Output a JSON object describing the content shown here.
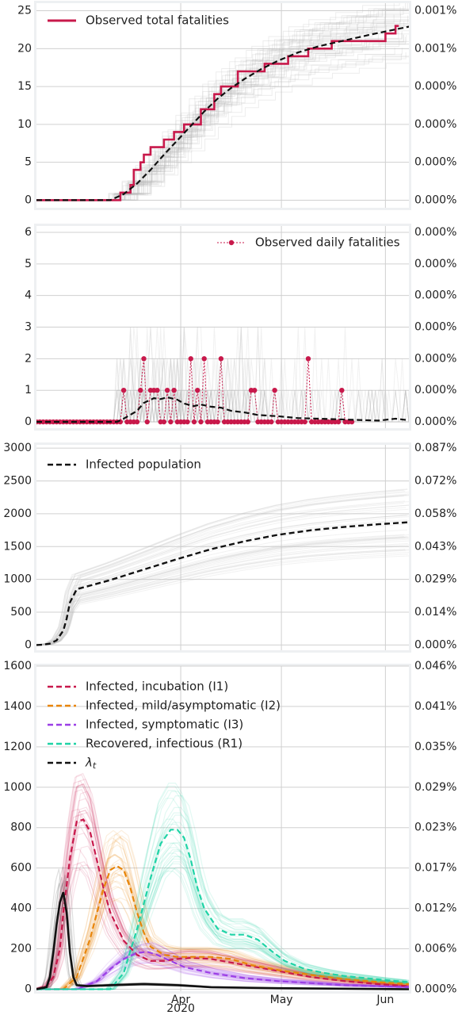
{
  "colors": {
    "observed": "#c8194b",
    "median": "#111111",
    "i1": "#c8194b",
    "i2": "#e8850a",
    "i3": "#9b3fe6",
    "r1": "#1fd3a6",
    "lambda": "#111111",
    "samples": "#bdbdbd"
  },
  "x_axis": {
    "ticks": [
      {
        "label": "Apr",
        "day": 31
      },
      {
        "label": "May",
        "day": 61
      },
      {
        "label": "Jun",
        "day": 92
      }
    ],
    "year_label": "2020",
    "range": [
      -12,
      99
    ]
  },
  "chart_data": [
    {
      "type": "line",
      "id": "total",
      "ylim": [
        -1,
        26
      ],
      "yticks": [
        "0",
        "5",
        "10",
        "15",
        "20",
        "25"
      ],
      "ytick_values": [
        0,
        5,
        10,
        15,
        20,
        25
      ],
      "right_ticks": [
        "0.000%",
        "0.000%",
        "0.000%",
        "0.000%",
        "0.001%",
        "0.001%"
      ],
      "legend": [
        {
          "label": "Observed total fatalities",
          "style": "observed-solid"
        }
      ],
      "observed": {
        "x": [
          -12,
          9,
          13,
          14,
          15,
          16,
          17,
          18,
          19,
          20,
          21,
          22,
          23,
          24,
          25,
          26,
          27,
          28,
          29,
          30,
          31,
          32,
          33,
          34,
          35,
          36,
          37,
          39,
          40,
          41,
          42,
          43,
          44,
          45,
          47,
          48,
          52,
          56,
          63,
          69,
          76,
          79,
          86,
          89,
          92,
          95,
          96
        ],
        "y": [
          0,
          0,
          1,
          1,
          1,
          2,
          4,
          4,
          5,
          6,
          6,
          7,
          7,
          7,
          7,
          8,
          8,
          8,
          9,
          9,
          9,
          10,
          10,
          10,
          10,
          10,
          12,
          12,
          12,
          14,
          14,
          15,
          15,
          15,
          15,
          17,
          17,
          18,
          19,
          20,
          21,
          21,
          21,
          21,
          22,
          23,
          23
        ]
      },
      "median": {
        "x": [
          -12,
          10,
          14,
          18,
          22,
          26,
          30,
          34,
          38,
          42,
          46,
          50,
          55,
          60,
          66,
          72,
          80,
          88,
          99
        ],
        "y": [
          0,
          0,
          0.8,
          2.2,
          4.0,
          6.0,
          7.9,
          9.8,
          11.7,
          13.4,
          14.8,
          16.0,
          17.3,
          18.4,
          19.5,
          20.3,
          21.1,
          21.9,
          22.9
        ]
      }
    },
    {
      "type": "line",
      "id": "daily",
      "ylim": [
        -0.2,
        6.2
      ],
      "yticks": [
        "0",
        "1",
        "2",
        "3",
        "4",
        "5",
        "6"
      ],
      "ytick_values": [
        0,
        1,
        2,
        3,
        4,
        5,
        6
      ],
      "right_ticks": [
        "0.000%",
        "0.000%",
        "0.000%",
        "0.000%",
        "0.000%",
        "0.000%",
        "0.000%"
      ],
      "legend": [
        {
          "label": "Observed daily fatalities",
          "style": "observed-dotted-marker"
        }
      ],
      "observed": {
        "x_start": -12,
        "values": [
          0,
          0,
          0,
          0,
          0,
          0,
          0,
          0,
          0,
          0,
          0,
          0,
          0,
          0,
          0,
          0,
          0,
          0,
          0,
          0,
          0,
          0,
          0,
          0,
          0,
          0,
          1,
          0,
          0,
          0,
          0,
          1,
          2,
          0,
          1,
          1,
          1,
          0,
          0,
          1,
          0,
          1,
          0,
          0,
          0,
          0,
          2,
          0,
          1,
          0,
          2,
          0,
          0,
          0,
          0,
          2,
          0,
          0,
          0,
          0,
          0,
          0,
          0,
          0,
          1,
          1,
          0,
          0,
          0,
          0,
          0,
          1,
          0,
          0,
          0,
          0,
          0,
          0,
          0,
          0,
          0,
          2,
          0,
          0,
          0,
          0,
          0,
          0,
          0,
          0,
          0,
          1,
          0,
          0,
          0
        ]
      },
      "median": {
        "x": [
          -12,
          12,
          14,
          18,
          20,
          23,
          25,
          27,
          30,
          32,
          35,
          37,
          40,
          43,
          46,
          50,
          54,
          60,
          66,
          72,
          78,
          84,
          90,
          95,
          99
        ],
        "y": [
          0,
          0,
          0.1,
          0.35,
          0.6,
          0.75,
          0.72,
          0.78,
          0.7,
          0.58,
          0.5,
          0.55,
          0.48,
          0.45,
          0.35,
          0.3,
          0.22,
          0.18,
          0.12,
          0.1,
          0.08,
          0.06,
          0.04,
          0.1,
          0.05
        ]
      }
    },
    {
      "type": "line",
      "id": "infected",
      "ylim": [
        -80,
        3050
      ],
      "yticks": [
        "0",
        "500",
        "1000",
        "1500",
        "2000",
        "2500",
        "3000"
      ],
      "ytick_values": [
        0,
        500,
        1000,
        1500,
        2000,
        2500,
        3000
      ],
      "right_ticks": [
        "0.000%",
        "0.014%",
        "0.029%",
        "0.043%",
        "0.058%",
        "0.072%",
        "0.087%"
      ],
      "legend": [
        {
          "label": "Infected population",
          "style": "median-dashed"
        }
      ],
      "median": {
        "x": [
          -12,
          -10,
          -8,
          -6,
          -4,
          -3,
          -2,
          0,
          5,
          10,
          15,
          20,
          25,
          30,
          40,
          50,
          60,
          70,
          80,
          90,
          99
        ],
        "y": [
          0,
          5,
          20,
          70,
          220,
          400,
          650,
          850,
          920,
          990,
          1070,
          1150,
          1230,
          1310,
          1460,
          1580,
          1680,
          1750,
          1800,
          1840,
          1870
        ]
      }
    },
    {
      "type": "line",
      "id": "compartments",
      "ylim": [
        -10,
        1600
      ],
      "yticks": [
        "0",
        "200",
        "400",
        "600",
        "800",
        "1000",
        "1200",
        "1400",
        "1600"
      ],
      "ytick_values": [
        0,
        200,
        400,
        600,
        800,
        1000,
        1200,
        1400,
        1600
      ],
      "right_ticks": [
        "0.000%",
        "0.006%",
        "0.012%",
        "0.017%",
        "0.023%",
        "0.029%",
        "0.035%",
        "0.041%",
        "0.046%"
      ],
      "legend": [
        {
          "label": "Infected, incubation (I1)",
          "style": "i1"
        },
        {
          "label": "Infected, mild/asymptomatic (I2)",
          "style": "i2"
        },
        {
          "label": "Infected, symptomatic (I3)",
          "style": "i3"
        },
        {
          "label": "Recovered, infectious (R1)",
          "style": "r1"
        },
        {
          "label": "λ",
          "sub": "t",
          "style": "lambda"
        }
      ],
      "series": [
        {
          "name": "Infected, incubation (I1)",
          "key": "i1",
          "x": [
            -12,
            -9,
            -7,
            -5,
            -4,
            -2,
            0,
            2,
            4,
            6,
            8,
            10,
            14,
            18,
            22,
            26,
            30,
            34,
            40,
            50,
            60,
            70,
            80,
            90,
            99
          ],
          "y": [
            0,
            15,
            60,
            200,
            380,
            650,
            830,
            840,
            780,
            640,
            500,
            380,
            240,
            170,
            140,
            140,
            150,
            155,
            150,
            120,
            90,
            60,
            40,
            25,
            15
          ]
        },
        {
          "name": "Infected, mild/asymptomatic (I2)",
          "key": "i2",
          "x": [
            -12,
            -4,
            0,
            4,
            8,
            10,
            12,
            14,
            16,
            18,
            20,
            22,
            26,
            30,
            36,
            40,
            46,
            52,
            60,
            70,
            80,
            90,
            99
          ],
          "y": [
            0,
            0,
            60,
            250,
            500,
            590,
            610,
            590,
            500,
            380,
            280,
            210,
            170,
            160,
            160,
            160,
            150,
            120,
            95,
            70,
            50,
            35,
            25
          ]
        },
        {
          "name": "Infected, symptomatic (I3)",
          "key": "i3",
          "x": [
            -12,
            0,
            6,
            10,
            14,
            18,
            21,
            24,
            28,
            32,
            40,
            50,
            60,
            70,
            80,
            90,
            99
          ],
          "y": [
            0,
            0,
            40,
            100,
            150,
            180,
            185,
            170,
            140,
            110,
            80,
            55,
            40,
            30,
            20,
            15,
            10
          ]
        },
        {
          "name": "Recovered, infectious (R1)",
          "key": "r1",
          "x": [
            -12,
            10,
            14,
            18,
            22,
            25,
            28,
            30,
            32,
            34,
            36,
            38,
            42,
            46,
            50,
            54,
            58,
            62,
            68,
            74,
            80,
            86,
            92,
            99
          ],
          "y": [
            0,
            0,
            80,
            300,
            550,
            720,
            790,
            790,
            750,
            640,
            500,
            400,
            300,
            270,
            270,
            245,
            190,
            140,
            100,
            80,
            65,
            55,
            45,
            35
          ]
        },
        {
          "name": "λ",
          "key": "lambda",
          "x": [
            -12,
            -9,
            -8,
            -7,
            -6,
            -5,
            -4,
            -3,
            -2,
            -1,
            0,
            3,
            10,
            20,
            30,
            40,
            60,
            99
          ],
          "y": [
            0,
            10,
            60,
            180,
            320,
            430,
            480,
            380,
            180,
            60,
            20,
            15,
            20,
            25,
            20,
            10,
            5,
            0
          ]
        }
      ]
    }
  ]
}
